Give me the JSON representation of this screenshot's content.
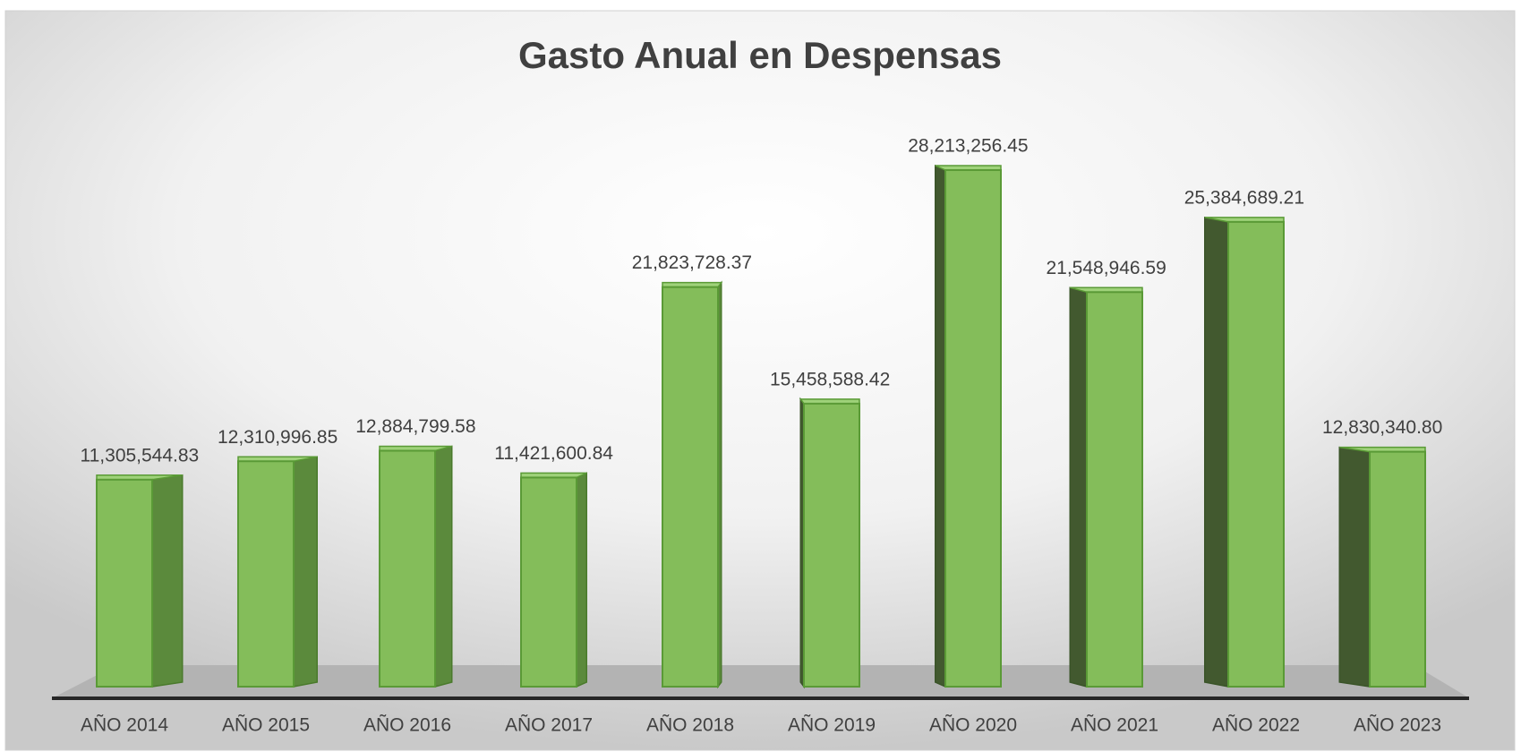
{
  "chart_data": {
    "type": "bar3d",
    "title": "Gasto Anual en Despensas",
    "categories": [
      "AÑO 2014",
      "AÑO 2015",
      "AÑO 2016",
      "AÑO 2017",
      "AÑO 2018",
      "AÑO 2019",
      "AÑO 2020",
      "AÑO 2021",
      "AÑO 2022",
      "AÑO 2023"
    ],
    "values": [
      11305544.83,
      12310996.85,
      12884799.58,
      11421600.84,
      21823728.37,
      15458588.42,
      28213256.45,
      21548946.59,
      25384689.21,
      12830340.8
    ],
    "value_labels": [
      "11,305,544.83",
      "12,310,996.85",
      "12,884,799.58",
      "11,421,600.84",
      "21,823,728.37",
      "15,458,588.42",
      "28,213,256.45",
      "21,548,946.59",
      "25,384,689.21",
      "12,830,340.80"
    ],
    "color": "#84bd5a"
  }
}
